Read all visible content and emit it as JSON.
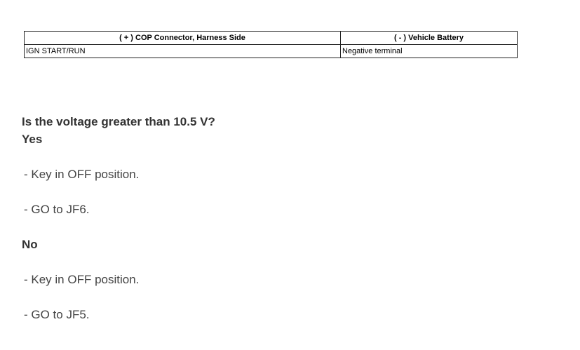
{
  "table": {
    "headers": [
      "( + ) COP Connector, Harness Side",
      "( - ) Vehicle Battery"
    ],
    "rows": [
      [
        "IGN START/RUN",
        "Negative terminal"
      ]
    ]
  },
  "question": "Is the voltage greater than 10.5 V?",
  "yes": {
    "label": "Yes",
    "items": [
      "-  Key in OFF position.",
      "-  GO to JF6."
    ]
  },
  "no": {
    "label": "No",
    "items": [
      "-  Key in OFF position.",
      "-  GO to JF5."
    ]
  }
}
